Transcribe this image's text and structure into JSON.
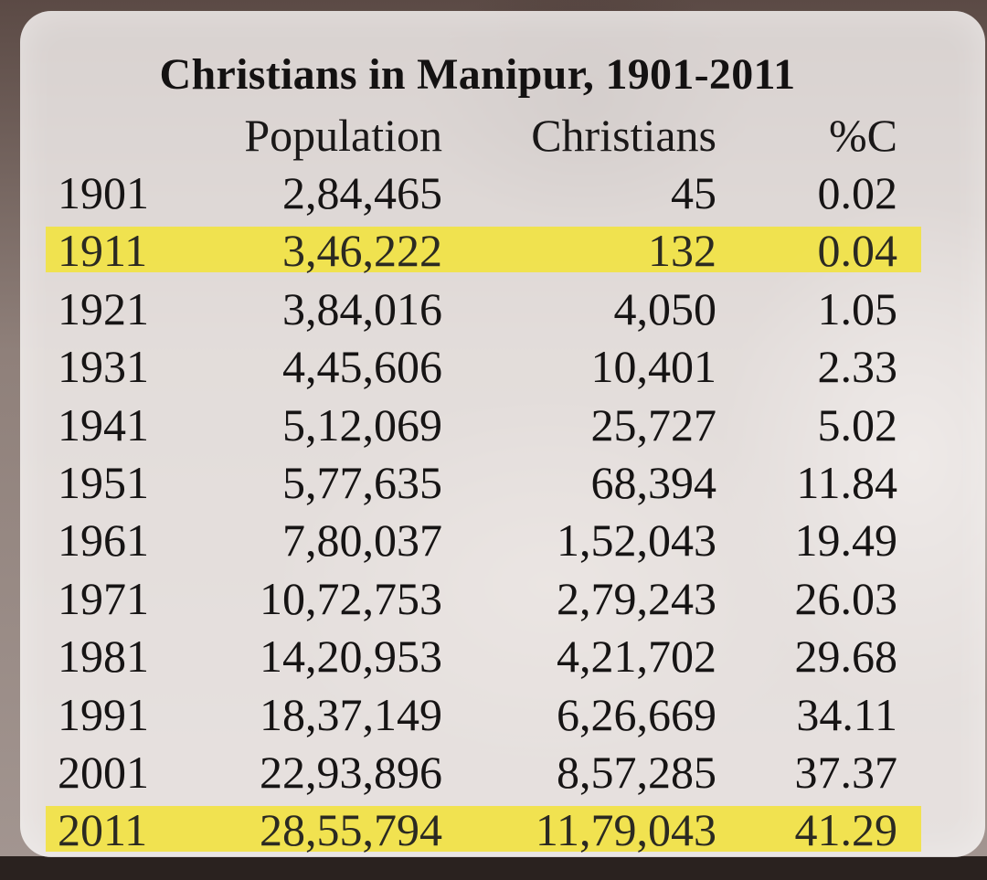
{
  "title": "Christians in Manipur, 1901-2011",
  "columns": {
    "population": "Population",
    "christians": "Christians",
    "percent": "%C"
  },
  "rows": [
    {
      "year": "1901",
      "population": "2,84,465",
      "christians": "45",
      "percent": "0.02",
      "highlighted": false
    },
    {
      "year": "1911",
      "population": "3,46,222",
      "christians": "132",
      "percent": "0.04",
      "highlighted": true
    },
    {
      "year": "1921",
      "population": "3,84,016",
      "christians": "4,050",
      "percent": "1.05",
      "highlighted": false
    },
    {
      "year": "1931",
      "population": "4,45,606",
      "christians": "10,401",
      "percent": "2.33",
      "highlighted": false
    },
    {
      "year": "1941",
      "population": "5,12,069",
      "christians": "25,727",
      "percent": "5.02",
      "highlighted": false
    },
    {
      "year": "1951",
      "population": "5,77,635",
      "christians": "68,394",
      "percent": "11.84",
      "highlighted": false
    },
    {
      "year": "1961",
      "population": "7,80,037",
      "christians": "1,52,043",
      "percent": "19.49",
      "highlighted": false
    },
    {
      "year": "1971",
      "population": "10,72,753",
      "christians": "2,79,243",
      "percent": "26.03",
      "highlighted": false
    },
    {
      "year": "1981",
      "population": "14,20,953",
      "christians": "4,21,702",
      "percent": "29.68",
      "highlighted": false
    },
    {
      "year": "1991",
      "population": "18,37,149",
      "christians": "6,26,669",
      "percent": "34.11",
      "highlighted": false
    },
    {
      "year": "2001",
      "population": "22,93,896",
      "christians": "8,57,285",
      "percent": "37.37",
      "highlighted": false
    },
    {
      "year": "2011",
      "population": "28,55,794",
      "christians": "11,79,043",
      "percent": "41.29",
      "highlighted": true
    }
  ],
  "colors": {
    "highlight": "#f1e245",
    "text": "#161414",
    "card": "#f8f4f2"
  }
}
